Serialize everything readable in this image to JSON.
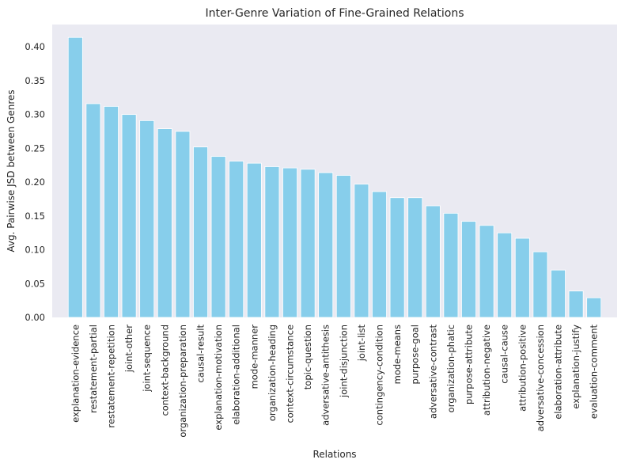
{
  "chart_data": {
    "type": "bar",
    "title": "Inter-Genre Variation of Fine-Grained Relations",
    "xlabel": "Relations",
    "ylabel": "Avg. Pairwise JSD between Genres",
    "ylim": [
      0,
      0.433
    ],
    "yticks": [
      "0.00",
      "0.05",
      "0.10",
      "0.15",
      "0.20",
      "0.25",
      "0.30",
      "0.35",
      "0.40"
    ],
    "grid": false,
    "bar_color": "#87ceeb",
    "background_color": "#eaeaf2",
    "categories": [
      "explanation-evidence",
      "restatement-partial",
      "restatement-repetition",
      "joint-other",
      "joint-sequence",
      "context-background",
      "organization-preparation",
      "causal-result",
      "explanation-motivation",
      "elaboration-additional",
      "mode-manner",
      "organization-heading",
      "context-circumstance",
      "topic-question",
      "adversative-antithesis",
      "joint-disjunction",
      "joint-list",
      "contingency-condition",
      "mode-means",
      "purpose-goal",
      "adversative-contrast",
      "organization-phatic",
      "purpose-attribute",
      "attribution-negative",
      "causal-cause",
      "attribution-positive",
      "adversative-concession",
      "elaboration-attribute",
      "explanation-justify",
      "evaluation-comment"
    ],
    "values": [
      0.414,
      0.316,
      0.312,
      0.3,
      0.291,
      0.279,
      0.275,
      0.252,
      0.238,
      0.231,
      0.228,
      0.223,
      0.221,
      0.219,
      0.214,
      0.21,
      0.197,
      0.186,
      0.177,
      0.177,
      0.165,
      0.154,
      0.142,
      0.136,
      0.125,
      0.117,
      0.097,
      0.07,
      0.039,
      0.029
    ]
  }
}
